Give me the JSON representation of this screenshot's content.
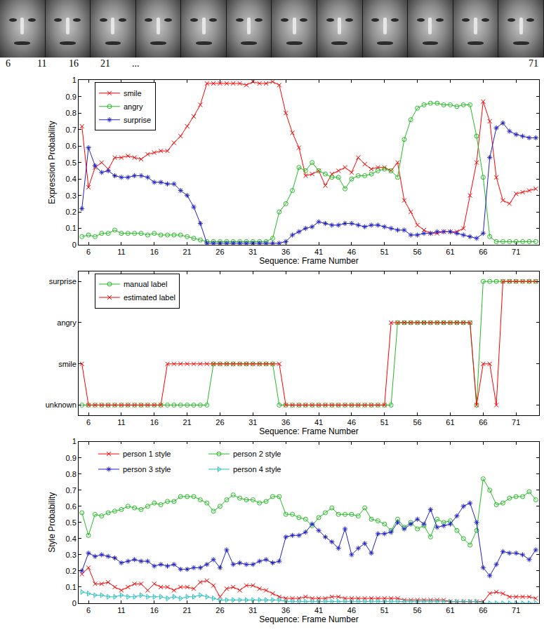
{
  "image_strip": {
    "frame_labels": [
      "6",
      "11",
      "16",
      "21",
      "...",
      "71"
    ]
  },
  "chart_data": [
    {
      "type": "line",
      "xlabel": "Sequence: Frame Number",
      "ylabel": "Expression Probability",
      "x": [
        5,
        6,
        7,
        8,
        9,
        10,
        11,
        12,
        13,
        14,
        15,
        16,
        17,
        18,
        19,
        20,
        21,
        22,
        23,
        24,
        25,
        26,
        27,
        28,
        29,
        30,
        31,
        32,
        33,
        34,
        35,
        36,
        37,
        38,
        39,
        40,
        41,
        42,
        43,
        44,
        45,
        46,
        47,
        48,
        49,
        50,
        51,
        52,
        53,
        54,
        55,
        56,
        57,
        58,
        59,
        60,
        61,
        62,
        63,
        64,
        65,
        66,
        67,
        68,
        69,
        70,
        71,
        72,
        73,
        74
      ],
      "xlim": [
        4.5,
        74.5
      ],
      "xticks": [
        6,
        11,
        16,
        21,
        26,
        31,
        36,
        41,
        46,
        51,
        56,
        61,
        66,
        71
      ],
      "ylim": [
        0,
        1
      ],
      "yticks": [
        0,
        0.1,
        0.2,
        0.3,
        0.4,
        0.5,
        0.6,
        0.7,
        0.8,
        0.9,
        1
      ],
      "grid": false,
      "legend": "upper left",
      "series": [
        {
          "name": "smile",
          "color": "#ff0000",
          "marker": "x",
          "line_style": "solid",
          "values": [
            0.72,
            0.35,
            0.47,
            0.5,
            0.46,
            0.53,
            0.53,
            0.54,
            0.53,
            0.52,
            0.55,
            0.56,
            0.57,
            0.57,
            0.62,
            0.66,
            0.72,
            0.78,
            0.85,
            0.98,
            0.98,
            0.98,
            0.98,
            0.98,
            0.98,
            0.97,
            0.99,
            0.98,
            0.98,
            0.99,
            0.97,
            0.8,
            0.68,
            0.59,
            0.42,
            0.43,
            0.45,
            0.36,
            0.43,
            0.45,
            0.47,
            0.44,
            0.53,
            0.49,
            0.46,
            0.47,
            0.47,
            0.45,
            0.5,
            0.27,
            0.2,
            0.12,
            0.09,
            0.07,
            0.07,
            0.08,
            0.08,
            0.08,
            0.1,
            0.3,
            0.5,
            0.87,
            0.75,
            0.41,
            0.27,
            0.25,
            0.31,
            0.32,
            0.33,
            0.34
          ]
        },
        {
          "name": "angry",
          "color": "#22bb22",
          "marker": "circle",
          "line_style": "solid",
          "values": [
            0.05,
            0.06,
            0.05,
            0.07,
            0.07,
            0.09,
            0.07,
            0.07,
            0.07,
            0.07,
            0.06,
            0.07,
            0.06,
            0.06,
            0.06,
            0.06,
            0.05,
            0.04,
            0.03,
            0.02,
            0.02,
            0.02,
            0.02,
            0.02,
            0.02,
            0.02,
            0.02,
            0.02,
            0.02,
            0.04,
            0.2,
            0.25,
            0.33,
            0.47,
            0.45,
            0.5,
            0.45,
            0.43,
            0.41,
            0.41,
            0.34,
            0.4,
            0.42,
            0.42,
            0.43,
            0.45,
            0.46,
            0.45,
            0.41,
            0.64,
            0.76,
            0.83,
            0.85,
            0.86,
            0.86,
            0.85,
            0.85,
            0.84,
            0.85,
            0.85,
            0.66,
            0.41,
            0.05,
            0.02,
            0.02,
            0.02,
            0.02,
            0.02,
            0.02,
            0.02
          ]
        },
        {
          "name": "surprise",
          "color": "#2020c8",
          "marker": "asterisk",
          "line_style": "solid",
          "values": [
            0.22,
            0.59,
            0.48,
            0.44,
            0.45,
            0.42,
            0.41,
            0.41,
            0.42,
            0.42,
            0.41,
            0.38,
            0.38,
            0.37,
            0.37,
            0.33,
            0.3,
            0.23,
            0.13,
            0.01,
            0.01,
            0.01,
            0.01,
            0.01,
            0.01,
            0.01,
            0.01,
            0.01,
            0.01,
            0.01,
            0.01,
            0.02,
            0.06,
            0.08,
            0.1,
            0.11,
            0.14,
            0.13,
            0.12,
            0.12,
            0.13,
            0.13,
            0.12,
            0.11,
            0.12,
            0.12,
            0.11,
            0.1,
            0.09,
            0.09,
            0.06,
            0.06,
            0.07,
            0.07,
            0.08,
            0.08,
            0.08,
            0.07,
            0.06,
            0.05,
            0.04,
            0.07,
            0.53,
            0.71,
            0.74,
            0.69,
            0.67,
            0.66,
            0.65,
            0.65
          ]
        }
      ]
    },
    {
      "type": "line",
      "xlabel": "Sequence: Frame Number",
      "x": [
        5,
        6,
        7,
        8,
        9,
        10,
        11,
        12,
        13,
        14,
        15,
        16,
        17,
        18,
        19,
        20,
        21,
        22,
        23,
        24,
        25,
        26,
        27,
        28,
        29,
        30,
        31,
        32,
        33,
        34,
        35,
        36,
        37,
        38,
        39,
        40,
        41,
        42,
        43,
        44,
        45,
        46,
        47,
        48,
        49,
        50,
        51,
        52,
        53,
        54,
        55,
        56,
        57,
        58,
        59,
        60,
        61,
        62,
        63,
        64,
        65,
        66,
        67,
        68,
        69,
        70,
        71,
        72,
        73,
        74
      ],
      "xlim": [
        4.5,
        74.5
      ],
      "xticks": [
        6,
        11,
        16,
        21,
        26,
        31,
        36,
        41,
        46,
        51,
        56,
        61,
        66,
        71
      ],
      "ycategories": [
        "unknown",
        "smile",
        "angry",
        "surprise"
      ],
      "grid": false,
      "legend": "upper left",
      "series": [
        {
          "name": "manual label",
          "color": "#22bb22",
          "marker": "circle",
          "line_style": "solid",
          "values": [
            "unknown",
            "unknown",
            "unknown",
            "unknown",
            "unknown",
            "unknown",
            "unknown",
            "unknown",
            "unknown",
            "unknown",
            "unknown",
            "unknown",
            "unknown",
            "unknown",
            "unknown",
            "unknown",
            "unknown",
            "unknown",
            "unknown",
            "unknown",
            "smile",
            "smile",
            "smile",
            "smile",
            "smile",
            "smile",
            "smile",
            "smile",
            "smile",
            "smile",
            "unknown",
            "unknown",
            "unknown",
            "unknown",
            "unknown",
            "unknown",
            "unknown",
            "unknown",
            "unknown",
            "unknown",
            "unknown",
            "unknown",
            "unknown",
            "unknown",
            "unknown",
            "unknown",
            "unknown",
            "unknown",
            "angry",
            "angry",
            "angry",
            "angry",
            "angry",
            "angry",
            "angry",
            "angry",
            "angry",
            "angry",
            "angry",
            "angry",
            "unknown",
            "surprise",
            "surprise",
            "surprise",
            "surprise",
            "surprise",
            "surprise",
            "surprise",
            "surprise",
            "surprise"
          ]
        },
        {
          "name": "estimated label",
          "color": "#ff0000",
          "marker": "x",
          "line_style": "solid",
          "values": [
            "smile",
            "unknown",
            "unknown",
            "unknown",
            "unknown",
            "unknown",
            "unknown",
            "unknown",
            "unknown",
            "unknown",
            "unknown",
            "unknown",
            "unknown",
            "smile",
            "smile",
            "smile",
            "smile",
            "smile",
            "smile",
            "smile",
            "smile",
            "smile",
            "smile",
            "smile",
            "smile",
            "smile",
            "smile",
            "smile",
            "smile",
            "smile",
            "smile",
            "unknown",
            "unknown",
            "unknown",
            "unknown",
            "unknown",
            "unknown",
            "unknown",
            "unknown",
            "unknown",
            "unknown",
            "unknown",
            "unknown",
            "unknown",
            "unknown",
            "unknown",
            "unknown",
            "angry",
            "angry",
            "angry",
            "angry",
            "angry",
            "angry",
            "angry",
            "angry",
            "angry",
            "angry",
            "angry",
            "angry",
            "angry",
            "unknown",
            "smile",
            "smile",
            "unknown",
            "surprise",
            "surprise",
            "surprise",
            "surprise",
            "surprise",
            "surprise"
          ]
        }
      ]
    },
    {
      "type": "line",
      "xlabel": "Sequence: Frame Number",
      "ylabel": "Style Probability",
      "x": [
        5,
        6,
        7,
        8,
        9,
        10,
        11,
        12,
        13,
        14,
        15,
        16,
        17,
        18,
        19,
        20,
        21,
        22,
        23,
        24,
        25,
        26,
        27,
        28,
        29,
        30,
        31,
        32,
        33,
        34,
        35,
        36,
        37,
        38,
        39,
        40,
        41,
        42,
        43,
        44,
        45,
        46,
        47,
        48,
        49,
        50,
        51,
        52,
        53,
        54,
        55,
        56,
        57,
        58,
        59,
        60,
        61,
        62,
        63,
        64,
        65,
        66,
        67,
        68,
        69,
        70,
        71,
        72,
        73,
        74
      ],
      "xlim": [
        4.5,
        74.5
      ],
      "xticks": [
        6,
        11,
        16,
        21,
        26,
        31,
        36,
        41,
        46,
        51,
        56,
        61,
        66,
        71
      ],
      "ylim": [
        0,
        1
      ],
      "yticks": [
        0,
        0.1,
        0.2,
        0.3,
        0.4,
        0.5,
        0.6,
        0.7,
        0.8,
        0.9,
        1
      ],
      "grid": false,
      "legend": "upper left",
      "series": [
        {
          "name": "person 1 style",
          "color": "#ff0000",
          "marker": "x",
          "line_style": "solid",
          "values": [
            0.18,
            0.22,
            0.12,
            0.12,
            0.13,
            0.1,
            0.08,
            0.1,
            0.12,
            0.12,
            0.08,
            0.12,
            0.1,
            0.1,
            0.08,
            0.1,
            0.1,
            0.09,
            0.13,
            0.14,
            0.11,
            0.04,
            0.09,
            0.1,
            0.08,
            0.11,
            0.11,
            0.09,
            0.08,
            0.06,
            0.04,
            0.03,
            0.03,
            0.03,
            0.04,
            0.03,
            0.03,
            0.03,
            0.04,
            0.04,
            0.03,
            0.03,
            0.03,
            0.03,
            0.03,
            0.03,
            0.03,
            0.03,
            0.03,
            0.02,
            0.02,
            0.02,
            0.02,
            0.02,
            0.02,
            0.02,
            0.01,
            0.01,
            0.01,
            0.01,
            0.01,
            0.01,
            0.06,
            0.07,
            0.06,
            0.04,
            0.04,
            0.04,
            0.04,
            0.03
          ]
        },
        {
          "name": "person 2 style",
          "color": "#22bb22",
          "marker": "circle",
          "line_style": "solid",
          "values": [
            0.56,
            0.42,
            0.55,
            0.54,
            0.56,
            0.57,
            0.58,
            0.6,
            0.59,
            0.58,
            0.6,
            0.62,
            0.61,
            0.63,
            0.63,
            0.66,
            0.66,
            0.66,
            0.64,
            0.62,
            0.57,
            0.6,
            0.64,
            0.67,
            0.65,
            0.64,
            0.64,
            0.62,
            0.63,
            0.66,
            0.66,
            0.55,
            0.55,
            0.53,
            0.52,
            0.48,
            0.53,
            0.56,
            0.59,
            0.55,
            0.55,
            0.55,
            0.54,
            0.59,
            0.52,
            0.51,
            0.49,
            0.45,
            0.52,
            0.47,
            0.5,
            0.46,
            0.48,
            0.41,
            0.52,
            0.5,
            0.51,
            0.45,
            0.4,
            0.36,
            0.45,
            0.77,
            0.7,
            0.61,
            0.62,
            0.65,
            0.66,
            0.66,
            0.69,
            0.64
          ]
        },
        {
          "name": "person 3 style",
          "color": "#2020c8",
          "marker": "asterisk",
          "line_style": "solid",
          "values": [
            0.2,
            0.31,
            0.29,
            0.3,
            0.29,
            0.28,
            0.25,
            0.26,
            0.27,
            0.26,
            0.26,
            0.23,
            0.24,
            0.23,
            0.24,
            0.21,
            0.21,
            0.22,
            0.22,
            0.24,
            0.27,
            0.22,
            0.33,
            0.24,
            0.25,
            0.24,
            0.24,
            0.26,
            0.27,
            0.25,
            0.26,
            0.41,
            0.42,
            0.42,
            0.44,
            0.49,
            0.45,
            0.41,
            0.38,
            0.34,
            0.46,
            0.3,
            0.34,
            0.37,
            0.31,
            0.43,
            0.43,
            0.44,
            0.5,
            0.46,
            0.49,
            0.52,
            0.49,
            0.58,
            0.47,
            0.48,
            0.49,
            0.54,
            0.6,
            0.62,
            0.5,
            0.22,
            0.17,
            0.24,
            0.32,
            0.31,
            0.31,
            0.3,
            0.27,
            0.33
          ]
        },
        {
          "name": "person 4 style",
          "color": "#20c0c0",
          "marker": "triangle-right",
          "line_style": "solid",
          "values": [
            0.07,
            0.06,
            0.05,
            0.05,
            0.04,
            0.04,
            0.05,
            0.04,
            0.04,
            0.05,
            0.04,
            0.04,
            0.04,
            0.03,
            0.04,
            0.03,
            0.04,
            0.04,
            0.05,
            0.04,
            0.03,
            0.02,
            0.02,
            0.02,
            0.02,
            0.02,
            0.02,
            0.02,
            0.02,
            0.02,
            0.02,
            0.01,
            0.01,
            0.01,
            0.01,
            0.01,
            0.01,
            0.01,
            0.01,
            0.01,
            0.01,
            0.01,
            0.01,
            0.01,
            0.01,
            0.01,
            0.01,
            0.01,
            0.01,
            0.01,
            0.01,
            0.01,
            0.01,
            0.01,
            0.01,
            0.01,
            0.01,
            0.01,
            0.01,
            0.01,
            0.01,
            0,
            0,
            0,
            0,
            0,
            0,
            0,
            0,
            0
          ]
        }
      ]
    }
  ]
}
